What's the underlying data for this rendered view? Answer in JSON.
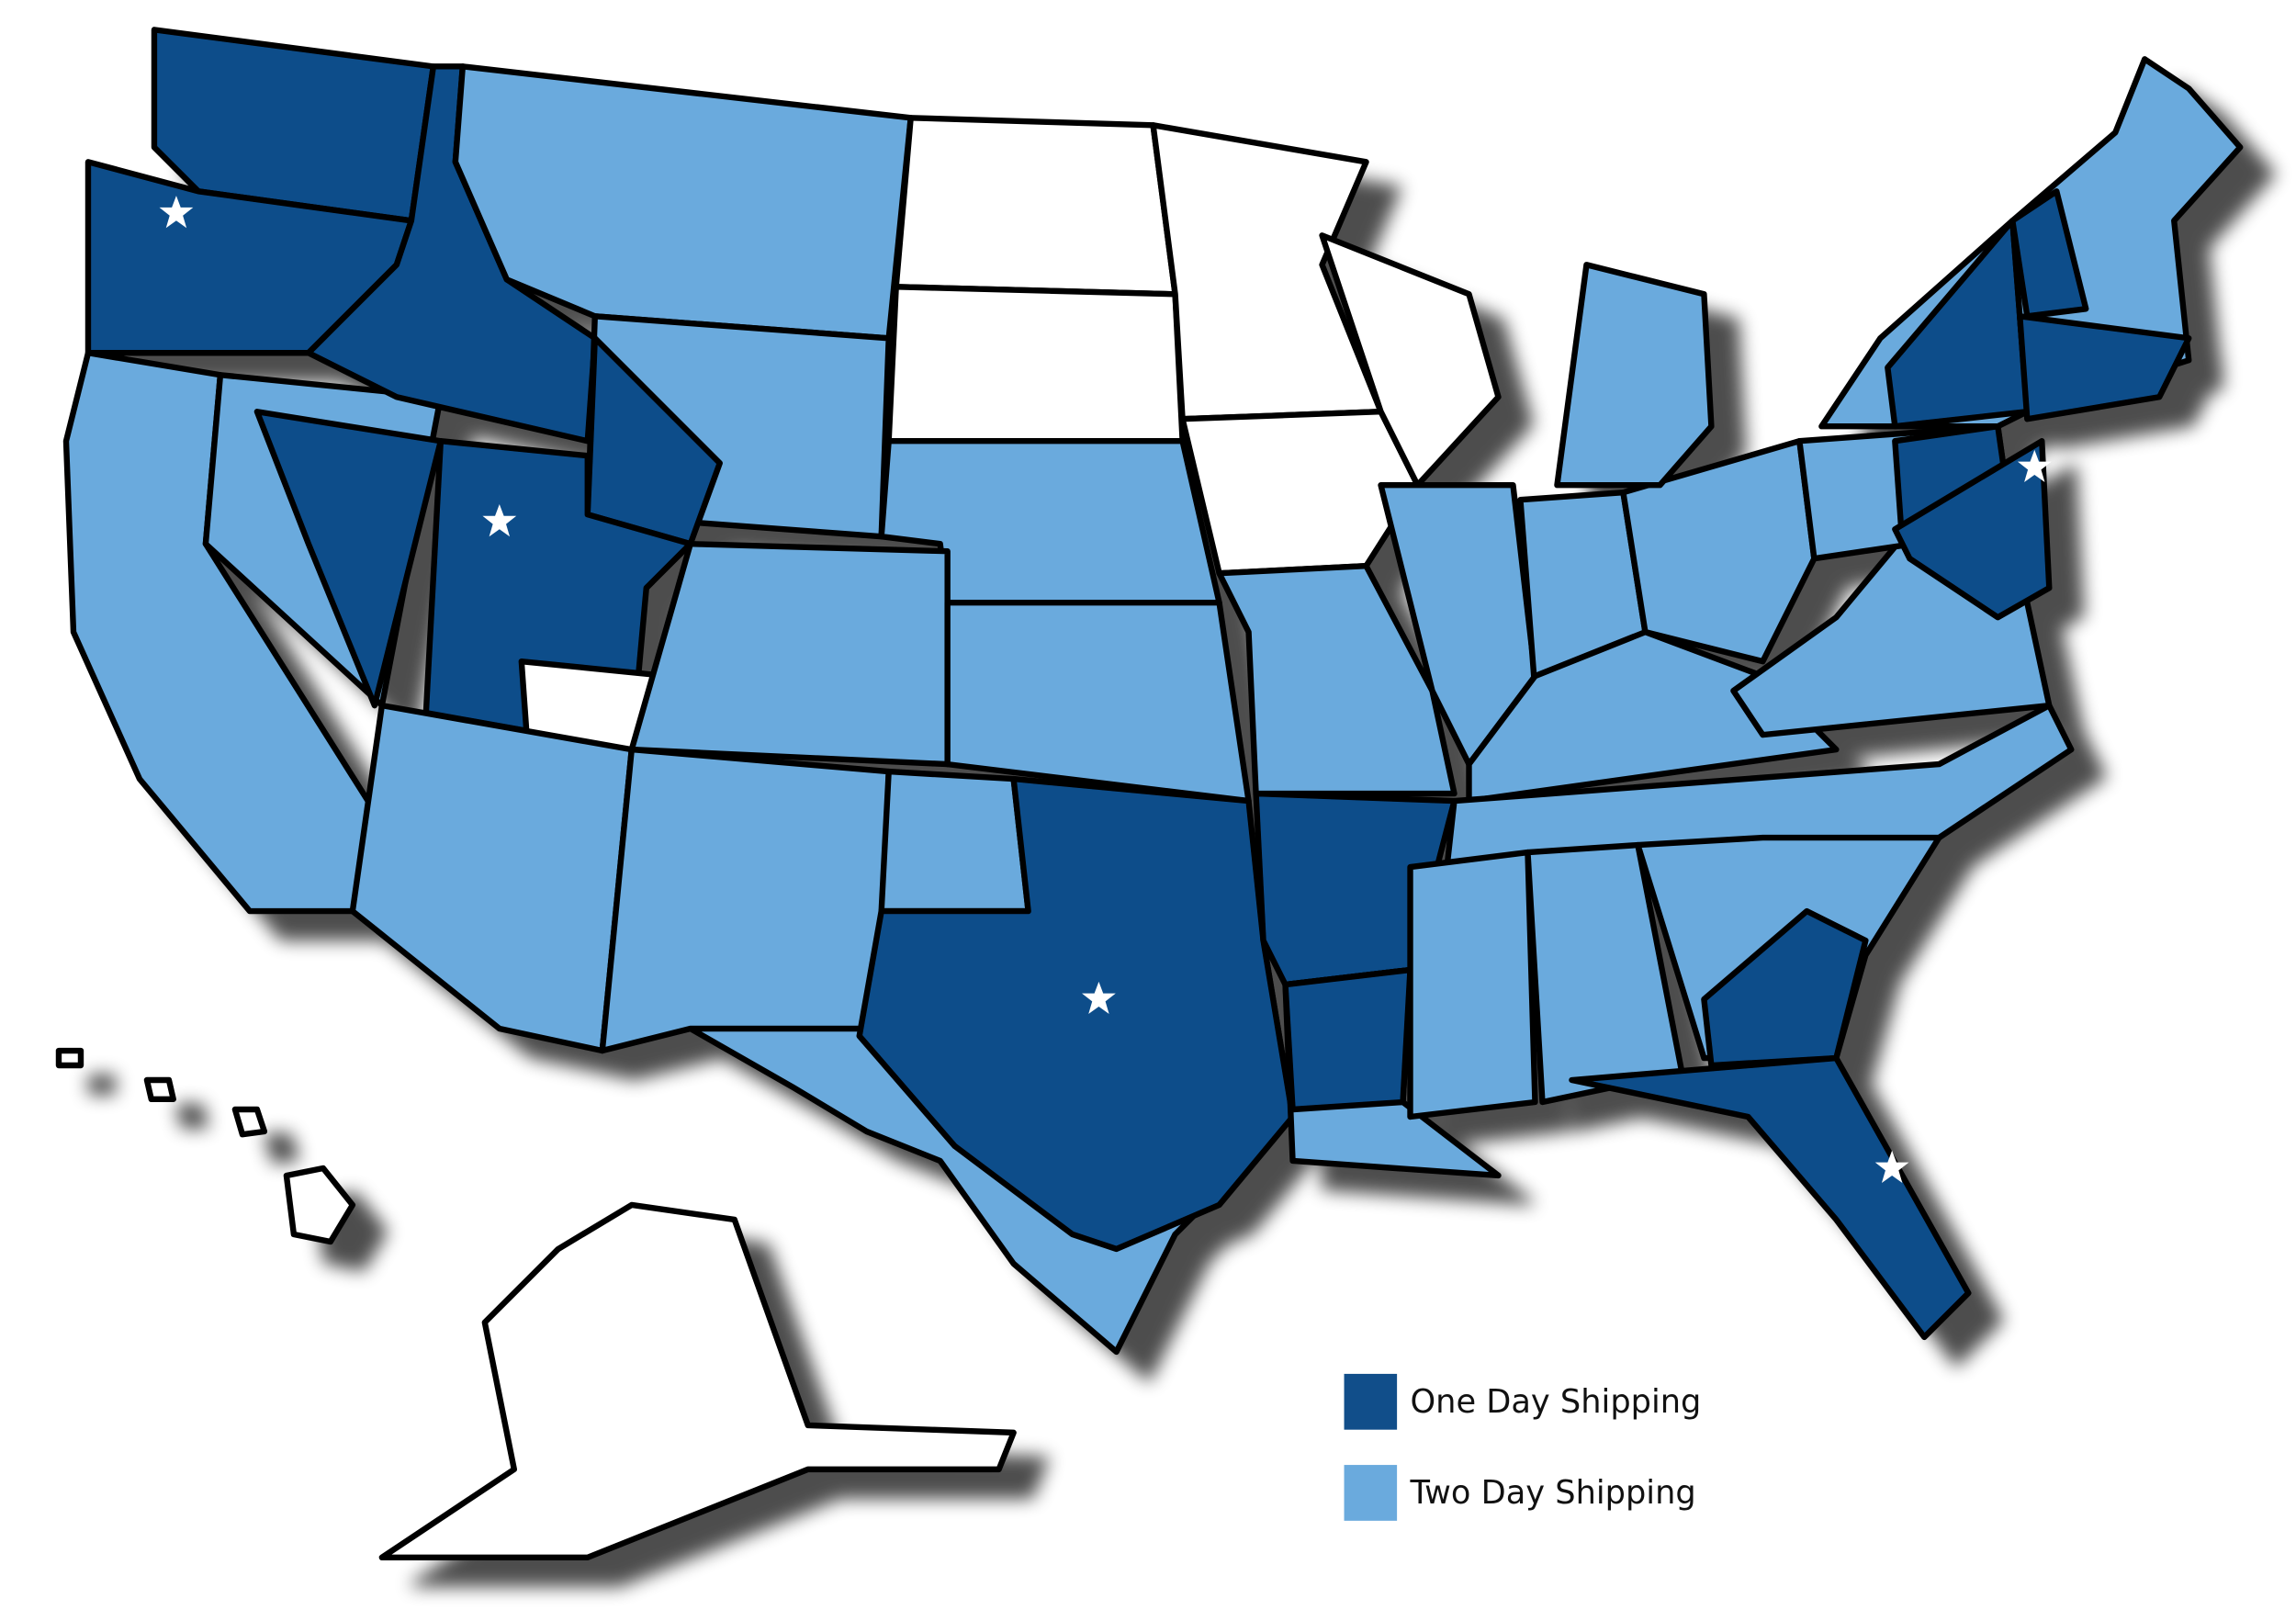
{
  "legend": {
    "items": [
      {
        "label": "One Day Shipping",
        "color": "#114e8a"
      },
      {
        "label": "Two Day Shipping",
        "color": "#6aaadd"
      }
    ]
  }
}
